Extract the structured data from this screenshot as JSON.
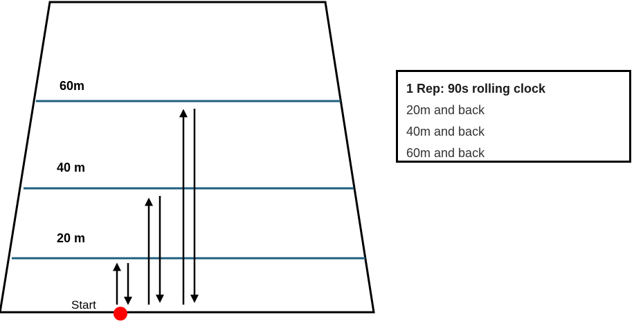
{
  "field": {
    "line_color": "#1f5f7f",
    "outline_color": "#000000",
    "labels": {
      "sixty": "60m",
      "forty": "40 m",
      "twenty": "20 m"
    },
    "start": {
      "label": "Start",
      "marker_color": "#ff0000"
    }
  },
  "info": {
    "title": "1 Rep: 90s rolling clock",
    "items": [
      "20m and back",
      "40m and back",
      "60m and back"
    ]
  }
}
